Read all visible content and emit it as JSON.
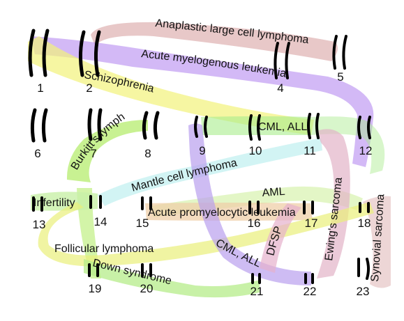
{
  "chromosomes": [
    "1",
    "2",
    "4",
    "5",
    "6",
    "7",
    "8",
    "9",
    "10",
    "11",
    "12",
    "13",
    "14",
    "15",
    "16",
    "17",
    "18",
    "19",
    "20",
    "21",
    "22",
    "23"
  ],
  "translocations": [
    {
      "label": "Anaplastic large cell lymphoma",
      "color": "#d9a3a3"
    },
    {
      "label": "Acute myelogenous leukemia",
      "color": "#b68bf0"
    },
    {
      "label": "Schizophrenia",
      "color": "#f2f27a"
    },
    {
      "label": "Burkitt's lymphoma",
      "color": "#b6ec6e"
    },
    {
      "label": "CML, ALL",
      "color": "#b6f0a0"
    },
    {
      "label": "Mantle cell lymphoma",
      "color": "#bff0f0"
    },
    {
      "label": "AML",
      "color": "#d0f0a0"
    },
    {
      "label": "Infertility",
      "color": "#c8f0a8"
    },
    {
      "label": "Acute promyelocytic leukemia",
      "color": "#efcfa8"
    },
    {
      "label": "Ewing's sarcoma",
      "color": "#e2b4c8"
    },
    {
      "label": "Synovial sarcoma",
      "color": "#e6c4c4"
    },
    {
      "label": "Follicular lymphoma",
      "color": "#eaf07a"
    },
    {
      "label": "Down syndrome",
      "color": "#b6ec8a"
    },
    {
      "label": "CML, ALL",
      "color": "#b9a0ee"
    },
    {
      "label": "DFSP",
      "color": "#e6b0cc"
    }
  ]
}
